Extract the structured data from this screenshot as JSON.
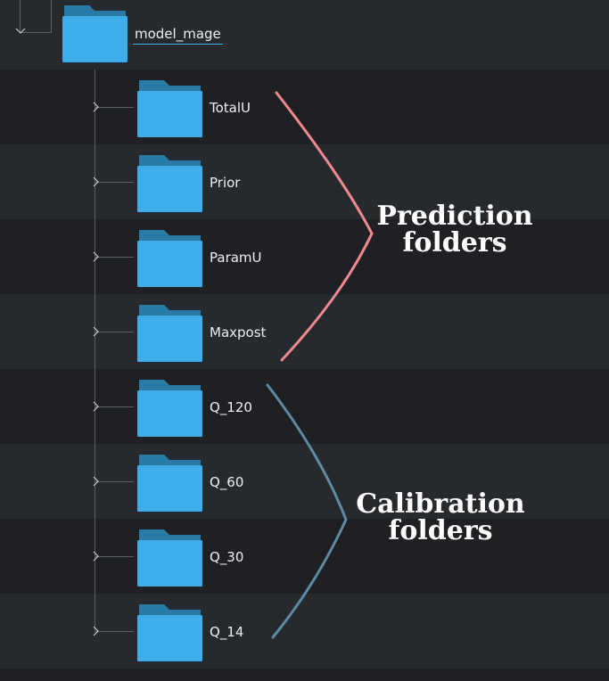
{
  "tree": {
    "root": {
      "label": "model_mage",
      "icon": "folder-icon",
      "expanded": true
    },
    "items": [
      {
        "label": "TotalU"
      },
      {
        "label": "Prior"
      },
      {
        "label": "ParamU"
      },
      {
        "label": "Maxpost"
      },
      {
        "label": "Q_120"
      },
      {
        "label": "Q_60"
      },
      {
        "label": "Q_30"
      },
      {
        "label": "Q_14"
      }
    ]
  },
  "annotations": {
    "prediction": {
      "line1": "Prediction",
      "line2": "folders",
      "color": "#f08a8e"
    },
    "calibration": {
      "line1": "Calibration",
      "line2": "folders",
      "color": "#5e8aa3"
    }
  },
  "colors": {
    "folder_body": "#3daee9",
    "folder_tab": "#2a7aa8",
    "selection_underline": "#3daee9",
    "band_light": "#26292d",
    "band_dark": "#1e2023"
  }
}
